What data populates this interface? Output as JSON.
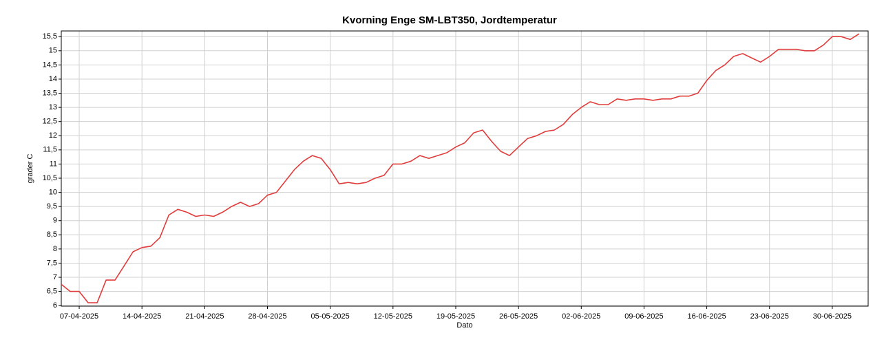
{
  "chart_data": {
    "type": "line",
    "title": "Kvorning Enge SM-LBT350, Jordtemperatur",
    "xlabel": "Dato",
    "ylabel": "grader C",
    "grid": true,
    "xlim": [
      "2025-04-05",
      "2025-07-04"
    ],
    "ylim": [
      5.98,
      15.7
    ],
    "xticks": [
      {
        "value": "2025-04-07",
        "label": "07-04-2025"
      },
      {
        "value": "2025-04-14",
        "label": "14-04-2025"
      },
      {
        "value": "2025-04-21",
        "label": "21-04-2025"
      },
      {
        "value": "2025-04-28",
        "label": "28-04-2025"
      },
      {
        "value": "2025-05-05",
        "label": "05-05-2025"
      },
      {
        "value": "2025-05-12",
        "label": "12-05-2025"
      },
      {
        "value": "2025-05-19",
        "label": "19-05-2025"
      },
      {
        "value": "2025-05-26",
        "label": "26-05-2025"
      },
      {
        "value": "2025-06-02",
        "label": "02-06-2025"
      },
      {
        "value": "2025-06-09",
        "label": "09-06-2025"
      },
      {
        "value": "2025-06-16",
        "label": "16-06-2025"
      },
      {
        "value": "2025-06-23",
        "label": "23-06-2025"
      },
      {
        "value": "2025-06-30",
        "label": "30-06-2025"
      }
    ],
    "yticks": [
      6,
      {
        "value": 6.5,
        "label": "6,5"
      },
      7,
      {
        "value": 7.5,
        "label": "7,5"
      },
      8,
      {
        "value": 8.5,
        "label": "8,5"
      },
      9,
      {
        "value": 9.5,
        "label": "9,5"
      },
      10,
      {
        "value": 10.5,
        "label": "10,5"
      },
      11,
      {
        "value": 11.5,
        "label": "11,5"
      },
      12,
      {
        "value": 12.5,
        "label": "12,5"
      },
      13,
      {
        "value": 13.5,
        "label": "13,5"
      },
      14,
      {
        "value": 14.5,
        "label": "14,5"
      },
      15,
      {
        "value": 15.5,
        "label": "15,5"
      }
    ],
    "x": [
      "2025-04-05",
      "2025-04-06",
      "2025-04-07",
      "2025-04-08",
      "2025-04-09",
      "2025-04-10",
      "2025-04-11",
      "2025-04-12",
      "2025-04-13",
      "2025-04-14",
      "2025-04-15",
      "2025-04-16",
      "2025-04-17",
      "2025-04-18",
      "2025-04-19",
      "2025-04-20",
      "2025-04-21",
      "2025-04-22",
      "2025-04-23",
      "2025-04-24",
      "2025-04-25",
      "2025-04-26",
      "2025-04-27",
      "2025-04-28",
      "2025-04-29",
      "2025-04-30",
      "2025-05-01",
      "2025-05-02",
      "2025-05-03",
      "2025-05-04",
      "2025-05-05",
      "2025-05-06",
      "2025-05-07",
      "2025-05-08",
      "2025-05-09",
      "2025-05-10",
      "2025-05-11",
      "2025-05-12",
      "2025-05-13",
      "2025-05-14",
      "2025-05-15",
      "2025-05-16",
      "2025-05-17",
      "2025-05-18",
      "2025-05-19",
      "2025-05-20",
      "2025-05-21",
      "2025-05-22",
      "2025-05-23",
      "2025-05-24",
      "2025-05-25",
      "2025-05-26",
      "2025-05-27",
      "2025-05-28",
      "2025-05-29",
      "2025-05-30",
      "2025-05-31",
      "2025-06-01",
      "2025-06-02",
      "2025-06-03",
      "2025-06-04",
      "2025-06-05",
      "2025-06-06",
      "2025-06-07",
      "2025-06-08",
      "2025-06-09",
      "2025-06-10",
      "2025-06-11",
      "2025-06-12",
      "2025-06-13",
      "2025-06-14",
      "2025-06-15",
      "2025-06-16",
      "2025-06-17",
      "2025-06-18",
      "2025-06-19",
      "2025-06-20",
      "2025-06-21",
      "2025-06-22",
      "2025-06-23",
      "2025-06-24",
      "2025-06-25",
      "2025-06-26",
      "2025-06-27",
      "2025-06-28",
      "2025-06-29",
      "2025-06-30",
      "2025-07-01",
      "2025-07-02",
      "2025-07-03"
    ],
    "series": [
      {
        "name": "Jordtemperatur",
        "color": "#e03c3c",
        "values": [
          6.75,
          6.5,
          6.5,
          6.1,
          6.1,
          6.9,
          6.9,
          7.4,
          7.9,
          8.05,
          8.1,
          8.4,
          9.2,
          9.4,
          9.3,
          9.15,
          9.2,
          9.15,
          9.3,
          9.5,
          9.65,
          9.5,
          9.6,
          9.9,
          10.0,
          10.4,
          10.8,
          11.1,
          11.3,
          11.2,
          10.8,
          10.3,
          10.35,
          10.3,
          10.35,
          10.5,
          10.6,
          11.0,
          11.0,
          11.1,
          11.3,
          11.2,
          11.3,
          11.4,
          11.6,
          11.75,
          12.1,
          12.2,
          11.8,
          11.45,
          11.3,
          11.6,
          11.9,
          12.0,
          12.15,
          12.2,
          12.4,
          12.75,
          13.0,
          13.2,
          13.1,
          13.1,
          13.3,
          13.25,
          13.3,
          13.3,
          13.25,
          13.3,
          13.3,
          13.4,
          13.4,
          13.5,
          13.95,
          14.3,
          14.5,
          14.8,
          14.9,
          14.75,
          14.6,
          14.8,
          15.05,
          15.05,
          15.05,
          15.0,
          15.0,
          15.2,
          15.5,
          15.5,
          15.4,
          15.6
        ]
      }
    ]
  }
}
